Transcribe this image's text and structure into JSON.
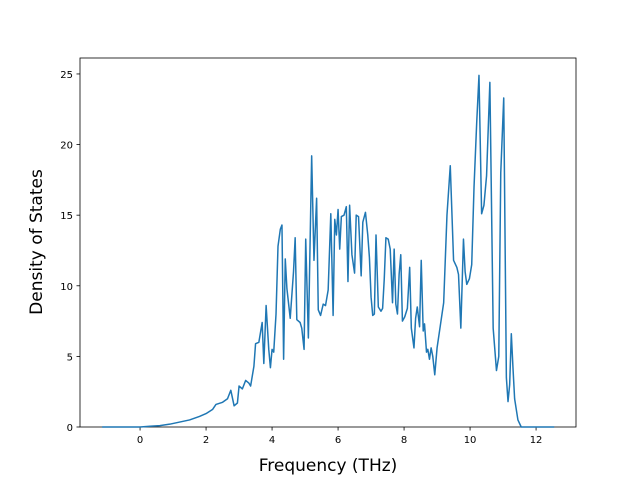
{
  "chart_data": {
    "type": "line",
    "xlabel": "Frequency (THz)",
    "ylabel": "Density of States",
    "xlim": [
      -1.82,
      13.21
    ],
    "ylim": [
      0,
      26.13
    ],
    "xticks": [
      0,
      2,
      4,
      6,
      8,
      10,
      12
    ],
    "yticks": [
      0,
      5,
      10,
      15,
      20,
      25
    ],
    "series": [
      {
        "color": "#1f77b4",
        "x": [
          -1.15,
          -0.5,
          0,
          0.3,
          0.6,
          0.9,
          1.2,
          1.5,
          1.8,
          2.0,
          2.2,
          2.3,
          2.5,
          2.65,
          2.75,
          2.85,
          2.95,
          3.0,
          3.1,
          3.2,
          3.3,
          3.35,
          3.45,
          3.5,
          3.6,
          3.7,
          3.75,
          3.82,
          3.9,
          3.95,
          4.0,
          4.05,
          4.12,
          4.18,
          4.25,
          4.3,
          4.35,
          4.4,
          4.45,
          4.55,
          4.65,
          4.7,
          4.75,
          4.85,
          4.9,
          4.97,
          5.02,
          5.1,
          5.2,
          5.27,
          5.35,
          5.4,
          5.47,
          5.55,
          5.62,
          5.7,
          5.78,
          5.85,
          5.9,
          5.95,
          6.0,
          6.05,
          6.1,
          6.18,
          6.25,
          6.3,
          6.35,
          6.42,
          6.5,
          6.55,
          6.62,
          6.7,
          6.75,
          6.83,
          6.9,
          6.95,
          7.0,
          7.05,
          7.1,
          7.15,
          7.22,
          7.3,
          7.35,
          7.4,
          7.45,
          7.52,
          7.58,
          7.65,
          7.7,
          7.75,
          7.8,
          7.85,
          7.9,
          7.95,
          8.02,
          8.1,
          8.17,
          8.22,
          8.3,
          8.35,
          8.4,
          8.47,
          8.52,
          8.58,
          8.62,
          8.68,
          8.72,
          8.77,
          8.82,
          8.87,
          8.93,
          9.0,
          9.1,
          9.2,
          9.3,
          9.4,
          9.5,
          9.6,
          9.65,
          9.72,
          9.8,
          9.85,
          9.9,
          9.98,
          10.05,
          10.12,
          10.2,
          10.27,
          10.35,
          10.42,
          10.5,
          10.6,
          10.7,
          10.8,
          10.87,
          10.93,
          11.02,
          11.1,
          11.15,
          11.2,
          11.25,
          11.3,
          11.35,
          11.45,
          11.55,
          12.0,
          12.55
        ],
        "values": [
          0,
          0,
          0,
          0.05,
          0.1,
          0.2,
          0.35,
          0.5,
          0.75,
          0.95,
          1.25,
          1.6,
          1.75,
          2.0,
          2.6,
          1.5,
          1.7,
          2.9,
          2.7,
          3.3,
          3.1,
          2.9,
          4.3,
          5.9,
          6.0,
          7.4,
          4.5,
          8.6,
          5.5,
          4.2,
          5.5,
          5.3,
          8.0,
          12.8,
          14.0,
          14.3,
          4.8,
          11.9,
          9.8,
          7.7,
          11.0,
          13.4,
          7.6,
          7.4,
          7.0,
          5.5,
          13.3,
          6.3,
          19.2,
          11.8,
          16.2,
          8.3,
          7.9,
          8.7,
          8.6,
          9.7,
          15.1,
          7.9,
          14.7,
          13.6,
          15.4,
          12.6,
          14.9,
          15.0,
          15.6,
          10.3,
          15.7,
          12.2,
          10.9,
          15.0,
          14.9,
          10.7,
          14.5,
          15.2,
          13.6,
          12.0,
          9.2,
          7.9,
          8.0,
          13.6,
          8.5,
          8.2,
          8.4,
          10.5,
          13.4,
          13.3,
          12.6,
          8.8,
          12.6,
          8.7,
          8.0,
          10.8,
          12.2,
          7.5,
          7.8,
          8.4,
          11.3,
          7.0,
          5.6,
          7.7,
          8.5,
          7.1,
          11.8,
          6.8,
          7.3,
          5.3,
          5.5,
          4.8,
          5.6,
          5.0,
          3.7,
          5.6,
          7.2,
          8.8,
          15.0,
          18.5,
          11.8,
          11.3,
          10.8,
          7.0,
          13.3,
          11.0,
          10.1,
          10.5,
          11.5,
          17.0,
          21.5,
          24.9,
          15.1,
          15.7,
          17.8,
          24.4,
          7.0,
          4.0,
          5.0,
          18.0,
          23.3,
          3.5,
          1.8,
          3.0,
          6.6,
          4.2,
          2.0,
          0.5,
          0,
          0,
          0
        ]
      }
    ]
  }
}
